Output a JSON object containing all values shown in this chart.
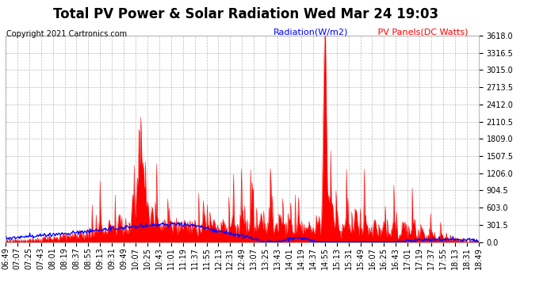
{
  "title": "Total PV Power & Solar Radiation Wed Mar 24 19:03",
  "copyright": "Copyright 2021 Cartronics.com",
  "legend_radiation": "Radiation(W/m2)",
  "legend_pv": " PV Panels(DC Watts)",
  "ymax": 3618.0,
  "yticks": [
    0.0,
    301.5,
    603.0,
    904.5,
    1206.0,
    1507.5,
    1809.0,
    2110.5,
    2412.0,
    2713.5,
    3015.0,
    3316.5,
    3618.0
  ],
  "x_labels": [
    "06:49",
    "07:07",
    "07:25",
    "07:43",
    "08:01",
    "08:19",
    "08:37",
    "08:55",
    "09:13",
    "09:31",
    "09:49",
    "10:07",
    "10:25",
    "10:43",
    "11:01",
    "11:19",
    "11:37",
    "11:55",
    "12:13",
    "12:31",
    "12:49",
    "13:07",
    "13:25",
    "13:43",
    "14:01",
    "14:19",
    "14:37",
    "14:55",
    "15:13",
    "15:31",
    "15:49",
    "16:07",
    "16:25",
    "16:43",
    "17:01",
    "17:19",
    "17:37",
    "17:55",
    "18:13",
    "18:31",
    "18:49"
  ],
  "background_color": "#ffffff",
  "grid_color": "#bbbbbb",
  "radiation_color": "#0000ff",
  "pv_color": "#ff0000",
  "title_fontsize": 12,
  "tick_fontsize": 7,
  "copyright_fontsize": 7
}
